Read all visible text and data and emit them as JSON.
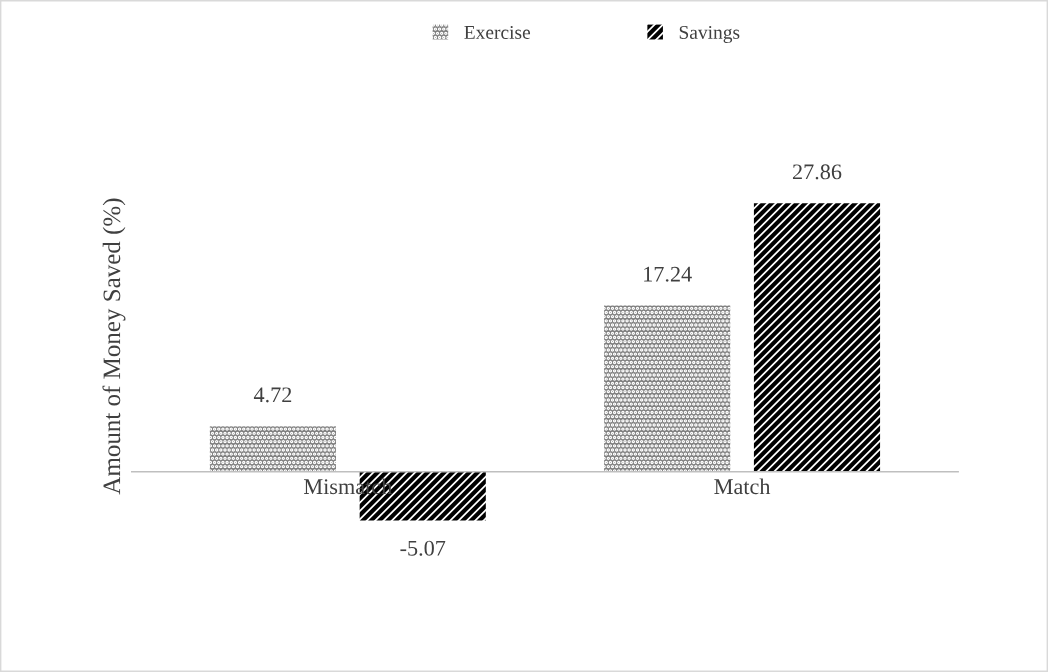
{
  "chart_data": {
    "type": "bar",
    "ylabel": "Amount of Money Saved (%)",
    "categories": [
      "Mismatch",
      "Match"
    ],
    "series": [
      {
        "name": "Exercise",
        "color": "#7f7f7f",
        "values": [
          4.72,
          17.24
        ]
      },
      {
        "name": "Savings",
        "color": "#000000",
        "values": [
          -5.07,
          27.86
        ]
      }
    ],
    "tick_labels": "x",
    "data_labels": true,
    "grid": false,
    "legend": "top"
  }
}
